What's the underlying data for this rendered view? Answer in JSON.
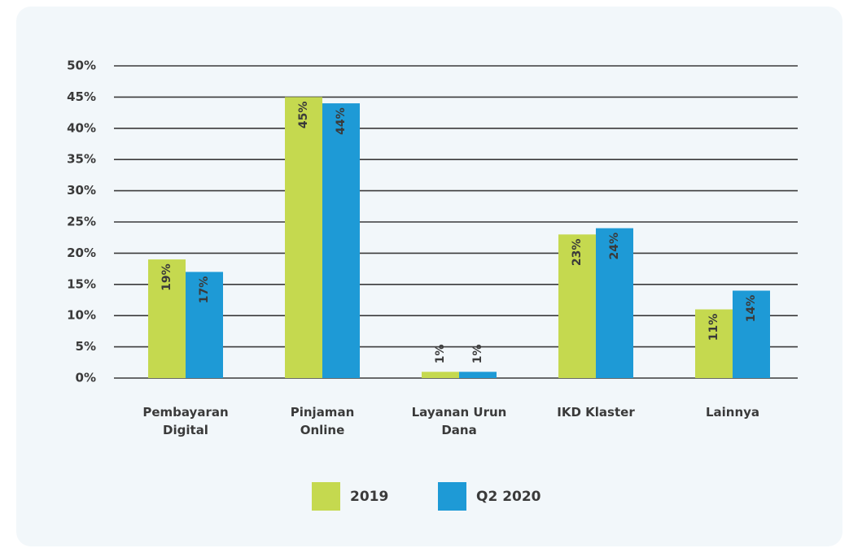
{
  "chart_data": {
    "type": "bar",
    "categories": [
      "Pembayaran\nDigital",
      "Pinjaman\nOnline",
      "Layanan Urun\nDana",
      "IKD Klaster",
      "Lainnya"
    ],
    "series": [
      {
        "name": "2019",
        "color": "#c5d94f",
        "values": [
          19,
          45,
          1,
          23,
          11
        ],
        "value_labels": [
          "19%",
          "45%",
          "1%",
          "23%",
          "11%"
        ]
      },
      {
        "name": "Q2 2020",
        "color": "#1e9ad6",
        "values": [
          17,
          44,
          1,
          24,
          14
        ],
        "value_labels": [
          "17%",
          "44%",
          "1%",
          "24%",
          "14%"
        ]
      }
    ],
    "ylim": [
      0,
      50
    ],
    "yticks": [
      {
        "value": 0,
        "label": "0%"
      },
      {
        "value": 5,
        "label": "5%"
      },
      {
        "value": 10,
        "label": "10%"
      },
      {
        "value": 15,
        "label": "15%"
      },
      {
        "value": 20,
        "label": "20%"
      },
      {
        "value": 25,
        "label": "25%"
      },
      {
        "value": 30,
        "label": "30%"
      },
      {
        "value": 35,
        "label": "35%"
      },
      {
        "value": 40,
        "label": "40%"
      },
      {
        "value": 45,
        "label": "45%"
      },
      {
        "value": 50,
        "label": "50%"
      }
    ],
    "grid": true,
    "legend": "bottom"
  }
}
